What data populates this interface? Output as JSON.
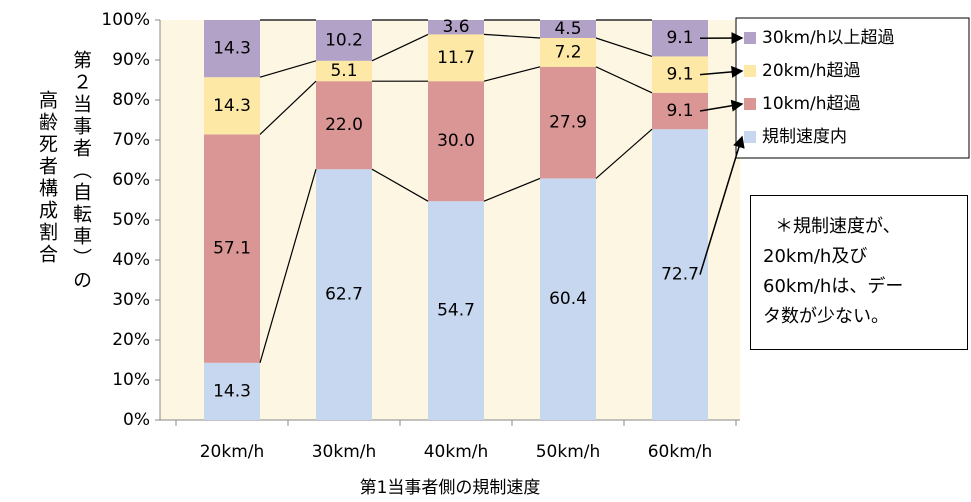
{
  "chart_data": {
    "type": "stacked-bar-100",
    "ylabel": [
      "第２当事者（自転車）の",
      "高齢死者構成割合"
    ],
    "xlabel": "第1当事者側の規制速度",
    "categories": [
      "20km/h",
      "30km/h",
      "40km/h",
      "50km/h",
      "60km/h"
    ],
    "series": [
      {
        "name": "規制速度内",
        "color": "#c7d7f0",
        "values": [
          14.3,
          62.7,
          54.7,
          60.4,
          72.7
        ],
        "value_labels": [
          "14.3",
          "62.7",
          "54.7",
          "60.4",
          "72.7"
        ]
      },
      {
        "name": "10km/h超過",
        "color": "#d99694",
        "values": [
          57.1,
          22.0,
          30.0,
          27.9,
          9.1
        ],
        "value_labels": [
          "57.1",
          "22.0",
          "30.0",
          "27.9",
          "9.1"
        ]
      },
      {
        "name": "20km/h超過",
        "color": "#fde8a6",
        "values": [
          14.3,
          5.1,
          11.7,
          7.2,
          9.1
        ],
        "value_labels": [
          "14.3",
          "5.1",
          "11.7",
          "7.2",
          "9.1"
        ]
      },
      {
        "name": "30km/h以上超過",
        "color": "#b3a2c7",
        "values": [
          14.3,
          10.2,
          3.6,
          4.5,
          9.1
        ],
        "value_labels": [
          "14.3",
          "10.2",
          "3.6",
          "4.5",
          "9.1"
        ]
      }
    ],
    "ylim": [
      0,
      100
    ],
    "yticks": [
      {
        "value": 0,
        "label": "0%"
      },
      {
        "value": 10,
        "label": "10%"
      },
      {
        "value": 20,
        "label": "20%"
      },
      {
        "value": 30,
        "label": "30%"
      },
      {
        "value": 40,
        "label": "40%"
      },
      {
        "value": 50,
        "label": "50%"
      },
      {
        "value": 60,
        "label": "60%"
      },
      {
        "value": 70,
        "label": "70%"
      },
      {
        "value": 80,
        "label": "80%"
      },
      {
        "value": 90,
        "label": "90%"
      },
      {
        "value": 100,
        "label": "100%"
      }
    ],
    "note": [
      "＊規制速度が、",
      "20km/h及び",
      "60km/hは、デー",
      "タ数が少ない。"
    ]
  }
}
